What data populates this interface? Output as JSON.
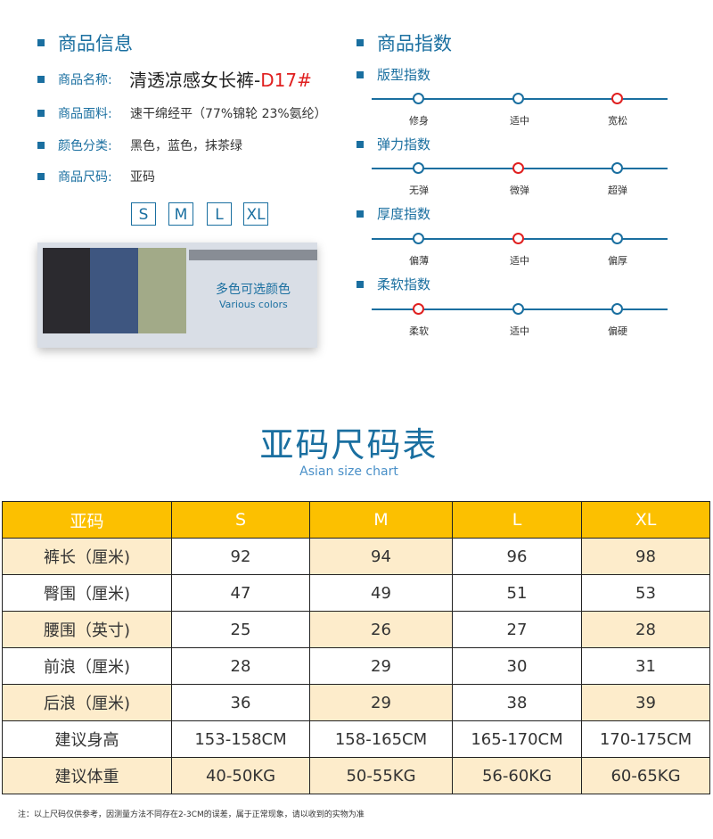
{
  "product_info": {
    "title": "商品信息",
    "rows": [
      {
        "label": "商品名称:",
        "value": "清透凉感女长裤-",
        "code": "D17#"
      },
      {
        "label": "商品面料:",
        "value": "速干绵经平（77%锦轮 23%氨纶）"
      },
      {
        "label": "颜色分类:",
        "value": "黑色，蓝色，抹茶绿"
      },
      {
        "label": "商品尺码:",
        "value": "亚码"
      }
    ],
    "sizes": [
      "S",
      "M",
      "L",
      "XL"
    ],
    "colors_banner": {
      "cn": "多色可选颜色",
      "en": "Various colors"
    },
    "swatch_colors": [
      "#2b2a2f",
      "#3e5680",
      "#a2aa88"
    ]
  },
  "product_index": {
    "title": "商品指数",
    "groups": [
      {
        "title": "版型指数",
        "ticks": [
          "修身",
          "适中",
          "宽松"
        ],
        "active": 2
      },
      {
        "title": "弹力指数",
        "ticks": [
          "无弹",
          "微弹",
          "超弹"
        ],
        "active": 1
      },
      {
        "title": "厚度指数",
        "ticks": [
          "偏薄",
          "适中",
          "偏厚"
        ],
        "active": 1
      },
      {
        "title": "柔软指数",
        "ticks": [
          "柔软",
          "适中",
          "偏硬"
        ],
        "active": 0
      }
    ]
  },
  "size_chart": {
    "title": "亚码尺码表",
    "subtitle": "Asian size chart",
    "header": [
      "亚码",
      "S",
      "M",
      "L",
      "XL"
    ],
    "rows": [
      [
        "裤长（厘米)",
        "92",
        "94",
        "96",
        "98"
      ],
      [
        "臀围（厘米)",
        "47",
        "49",
        "51",
        "53"
      ],
      [
        "腰围（英寸)",
        "25",
        "26",
        "27",
        "28"
      ],
      [
        "前浪（厘米)",
        "28",
        "29",
        "30",
        "31"
      ],
      [
        "后浪（厘米)",
        "36",
        "29",
        "38",
        "39"
      ],
      [
        "建议身高",
        "153-158CM",
        "158-165CM",
        "165-170CM",
        "170-175CM"
      ],
      [
        "建议体重",
        "40-50KG",
        "50-55KG",
        "56-60KG",
        "60-65KG"
      ]
    ],
    "note": "注：以上尺码仅供参考，因测量方法不同存在2-3CM的误差，属于正常现象，请以收到的实物为准"
  },
  "colors": {
    "accent": "#1a6fa0",
    "header": "#fcc000",
    "cream": "#fdeccb",
    "active_dot": "#e02020"
  }
}
